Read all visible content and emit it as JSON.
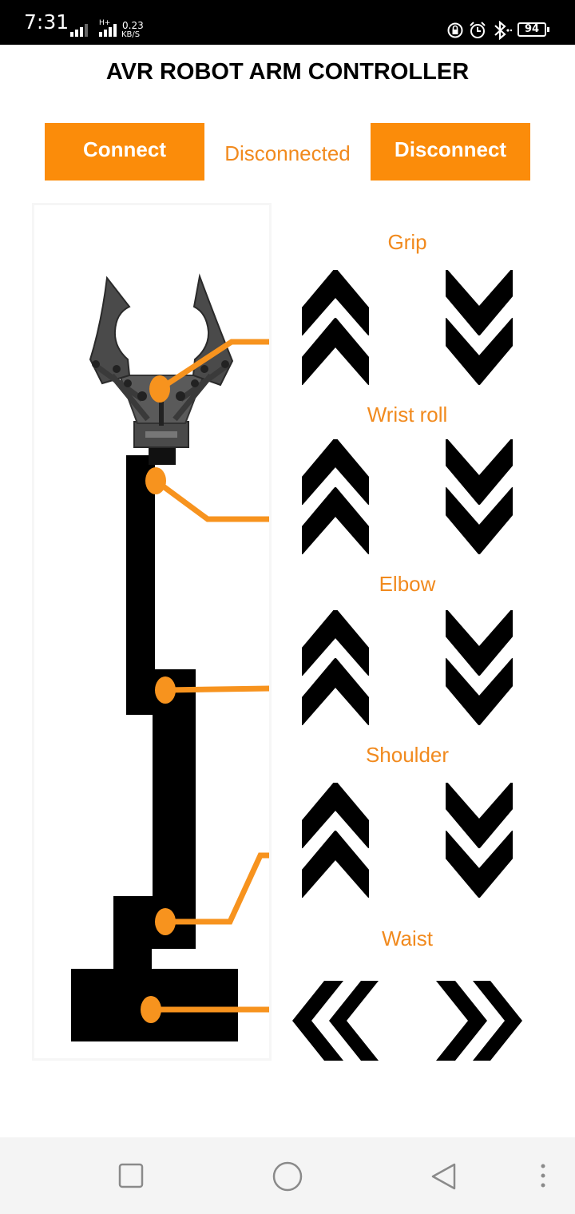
{
  "status_bar": {
    "time": "7:31",
    "network_type": "H+",
    "data_rate_value": "0.23",
    "data_rate_unit": "KB/S",
    "battery": "94",
    "icons": [
      "signal-icon",
      "signal-h-plus-icon",
      "vpn-lock-icon",
      "alarm-icon",
      "bluetooth-icon",
      "battery-icon"
    ]
  },
  "app": {
    "title": "AVR ROBOT ARM CONTROLLER",
    "connect_label": "Connect",
    "status_text": "Disconnected",
    "disconnect_label": "Disconnect"
  },
  "joints": [
    {
      "label": "Grip",
      "inc_icon": "double-chevron-up-icon",
      "dec_icon": "double-chevron-down-icon"
    },
    {
      "label": "Wrist roll",
      "inc_icon": "double-chevron-up-icon",
      "dec_icon": "double-chevron-down-icon"
    },
    {
      "label": "Elbow",
      "inc_icon": "double-chevron-up-icon",
      "dec_icon": "double-chevron-down-icon"
    },
    {
      "label": "Shoulder",
      "inc_icon": "double-chevron-up-icon",
      "dec_icon": "double-chevron-down-icon"
    },
    {
      "label": "Waist",
      "inc_icon": "double-chevron-left-icon",
      "dec_icon": "double-chevron-right-icon"
    }
  ],
  "colors": {
    "accent": "#fb8c0a",
    "accent_text": "#f18a1e",
    "connector": "#f7931e",
    "arm": "#000000",
    "gripper": "#4a4a4a"
  },
  "nav_bar": {
    "icons": [
      "recent-apps-icon",
      "home-icon",
      "back-icon",
      "more-options-icon"
    ]
  }
}
